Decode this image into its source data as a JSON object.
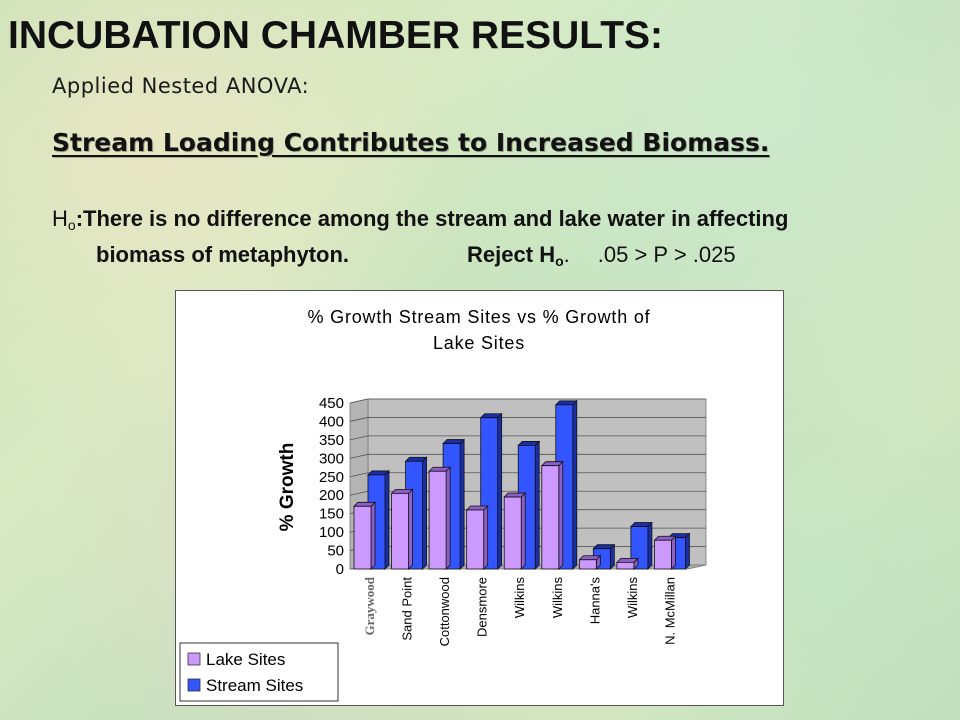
{
  "slide": {
    "title": "INCUBATION CHAMBER RESULTS:",
    "subtitle": "Applied Nested ANOVA:",
    "headline": "Stream Loading Contributes to Increased Biomass.",
    "hypothesis": {
      "h": "H",
      "o": "o",
      "line1": ":There is no difference among the stream and lake water in affecting",
      "line2": "biomass of metaphyton.",
      "reject": "Reject H",
      "reject_sub": "o",
      "reject_dot": ".",
      "p_range": ".05 > P > .025"
    }
  },
  "colors": {
    "lake": "#cc99ff",
    "lake_dark": "#8c5fc4",
    "stream": "#3355ff",
    "stream_dark": "#1a2ea8",
    "wall": "#c0c0c0",
    "floor": "#a8a8a8"
  },
  "chart_data": {
    "type": "bar",
    "title_line1": "% Growth Stream Sites vs % Growth of",
    "title_line2": "Lake Sites",
    "xlabel": "",
    "ylabel": "% Growth",
    "ylim": [
      0,
      450
    ],
    "yticks": [
      "0",
      "50",
      "100",
      "150",
      "200",
      "250",
      "300",
      "350",
      "400",
      "450"
    ],
    "categories": [
      "Graywood",
      "Sand Point",
      "Cottonwood",
      "Densmore",
      "Wilkins",
      "Wilkins",
      "Hanna's",
      "Wilkins",
      "N. McMillan"
    ],
    "series": [
      {
        "name": "Lake Sites",
        "values": [
          170,
          205,
          265,
          160,
          195,
          280,
          25,
          18,
          78
        ]
      },
      {
        "name": "Stream Sites",
        "values": [
          255,
          292,
          340,
          410,
          335,
          445,
          55,
          115,
          85
        ]
      }
    ],
    "grid": true,
    "legend_position": "bottom-left"
  }
}
